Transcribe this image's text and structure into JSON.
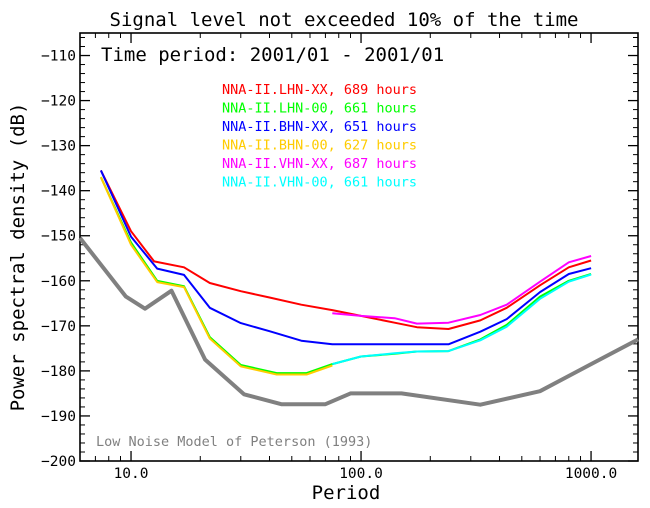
{
  "chart_data": {
    "type": "line",
    "title": "Signal level not exceeded 10% of the time",
    "subtitle": "Time period: 2001/01 - 2001/01",
    "xlabel": "Period",
    "ylabel": "Power spectral density (dB)",
    "xscale": "log",
    "xlim": [
      6,
      1600
    ],
    "ylim": [
      -200,
      -105
    ],
    "xticks": [
      {
        "value": 10,
        "label": "10.0"
      },
      {
        "value": 100,
        "label": "100.0"
      },
      {
        "value": 1000,
        "label": "1000.0"
      }
    ],
    "yticks": [
      {
        "value": -110,
        "label": "−110"
      },
      {
        "value": -120,
        "label": "−120"
      },
      {
        "value": -130,
        "label": "−130"
      },
      {
        "value": -140,
        "label": "−140"
      },
      {
        "value": -150,
        "label": "−150"
      },
      {
        "value": -160,
        "label": "−160"
      },
      {
        "value": -170,
        "label": "−170"
      },
      {
        "value": -180,
        "label": "−180"
      },
      {
        "value": -190,
        "label": "−190"
      },
      {
        "value": -200,
        "label": "−200"
      }
    ],
    "legend_position": "top-center",
    "series": [
      {
        "name": "NNA-II.LHN-XX, 689 hours",
        "color": "#ff0000",
        "x": [
          7.4,
          10,
          12.6,
          17,
          22,
          30,
          40,
          55,
          75,
          100,
          140,
          175,
          240,
          330,
          430,
          600,
          800,
          1000
        ],
        "y": [
          -135.5,
          -149,
          -155.7,
          -157,
          -160.5,
          -162.3,
          -163.7,
          -165.3,
          -166.5,
          -167.8,
          -169.3,
          -170.3,
          -170.7,
          -168.8,
          -166,
          -161,
          -157,
          -155.5
        ]
      },
      {
        "name": "NNA-II.LHN-00, 661 hours",
        "color": "#00ff00",
        "x": [
          7.4,
          10,
          13,
          17,
          22,
          30,
          43,
          58,
          75,
          100,
          140,
          175,
          240,
          330,
          430,
          600,
          800,
          1000
        ],
        "y": [
          -137,
          -151.5,
          -160,
          -161.2,
          -172.5,
          -178.7,
          -180.5,
          -180.5,
          -178.5,
          -176.8,
          -176.2,
          -175.7,
          -175.6,
          -173,
          -169.8,
          -163.5,
          -160,
          -158.5
        ]
      },
      {
        "name": "NNA-II.BHN-XX, 651 hours",
        "color": "#0000ff",
        "x": [
          7.4,
          10,
          13,
          17,
          22,
          30,
          40,
          55,
          75,
          100,
          140,
          175,
          240,
          330,
          430,
          600,
          800,
          1000
        ],
        "y": [
          -135.5,
          -150.2,
          -157.3,
          -158.7,
          -166,
          -169.4,
          -171.2,
          -173.3,
          -174.1,
          -174.1,
          -174.1,
          -174.1,
          -174.1,
          -171.3,
          -168.5,
          -162.5,
          -158.5,
          -157.2
        ]
      },
      {
        "name": "NNA-II.BHN-00, 627 hours",
        "color": "#ffcc00",
        "x": [
          7.4,
          10,
          13,
          17,
          22,
          30,
          43,
          58,
          75
        ],
        "y": [
          -137,
          -152,
          -160.3,
          -161.4,
          -172.8,
          -179,
          -180.8,
          -180.8,
          -178.8
        ]
      },
      {
        "name": "NNA-II.VHN-XX, 687 hours",
        "color": "#ff00ff",
        "x": [
          75,
          100,
          140,
          175,
          240,
          330,
          430,
          600,
          800,
          1000
        ],
        "y": [
          -167.2,
          -167.8,
          -168.3,
          -169.5,
          -169.3,
          -167.6,
          -165.3,
          -160.2,
          -155.9,
          -154.5
        ]
      },
      {
        "name": "NNA-II.VHN-00, 661 hours",
        "color": "#00ffff",
        "x": [
          75,
          100,
          140,
          175,
          240,
          330,
          430,
          600,
          800,
          1000
        ],
        "y": [
          -178.5,
          -176.8,
          -176.1,
          -175.7,
          -175.6,
          -173.2,
          -170.2,
          -164,
          -160.2,
          -158.6
        ]
      }
    ],
    "reference": {
      "name": "Low Noise Model of Peterson (1993)",
      "color": "#808080",
      "x": [
        6,
        9.5,
        11.5,
        15,
        21,
        31,
        45,
        70,
        90,
        150,
        330,
        600,
        1000,
        1600
      ],
      "y": [
        -150.5,
        -163.5,
        -166.2,
        -162.2,
        -177.5,
        -185.2,
        -187.4,
        -187.4,
        -185,
        -185,
        -187.5,
        -184.5,
        -178.5,
        -173
      ]
    }
  }
}
